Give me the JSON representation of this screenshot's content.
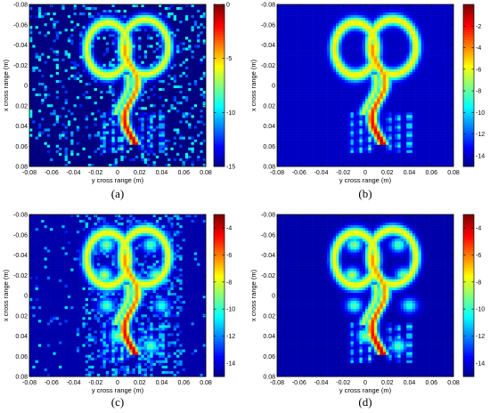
{
  "chart_data": [
    {
      "type": "heatmap",
      "caption": "(a)",
      "xlabel": "y cross range (m)",
      "ylabel": "x cross range (m)",
      "xlim": [
        -0.08,
        0.08
      ],
      "ylim": [
        -0.08,
        0.08
      ],
      "x_ticks": [
        "-0.08",
        "-0.06",
        "-0.04",
        "-0.02",
        "0",
        "0.02",
        "0.04",
        "0.06",
        "0.08"
      ],
      "y_ticks": [
        "-0.08",
        "-0.06",
        "-0.04",
        "-0.02",
        "0",
        "0.02",
        "0.04",
        "0.06",
        "0.08"
      ],
      "y_axis_reversed": true,
      "colorbar": {
        "min": -15,
        "max": 0,
        "ticks": [
          "0",
          "-5",
          "-10",
          "-15"
        ],
        "tick_values": [
          0,
          -5,
          -10,
          -15
        ]
      },
      "background_db": -15,
      "noise": "strong"
    },
    {
      "type": "heatmap",
      "caption": "(b)",
      "xlabel": "y cross range (m)",
      "ylabel": "x cross range (m)",
      "xlim": [
        -0.08,
        0.08
      ],
      "ylim": [
        -0.08,
        0.08
      ],
      "x_ticks": [
        "-0.08",
        "-0.06",
        "-0.04",
        "-0.02",
        "0",
        "0.02",
        "0.04",
        "0.06",
        "0.08"
      ],
      "y_ticks": [
        "-0.08",
        "-0.06",
        "-0.04",
        "-0.02",
        "0",
        "0.02",
        "0.04",
        "0.06",
        "0.08"
      ],
      "y_axis_reversed": true,
      "colorbar": {
        "min": -15,
        "max": 0,
        "ticks": [
          "-2",
          "-4",
          "-6",
          "-8",
          "-10",
          "-12",
          "-14"
        ],
        "tick_values": [
          -2,
          -4,
          -6,
          -8,
          -10,
          -12,
          -14
        ]
      },
      "background_db": -14,
      "noise": "none"
    },
    {
      "type": "heatmap",
      "caption": "(c)",
      "xlabel": "y cross range (m)",
      "ylabel": "x cross range (m)",
      "xlim": [
        -0.08,
        0.08
      ],
      "ylim": [
        -0.08,
        0.08
      ],
      "x_ticks": [
        "-0.08",
        "-0.06",
        "-0.04",
        "-0.02",
        "0",
        "0.02",
        "0.04",
        "0.06",
        "0.08"
      ],
      "y_ticks": [
        "-0.08",
        "-0.06",
        "-0.04",
        "-0.02",
        "0",
        "0.02",
        "0.04",
        "0.06",
        "0.08"
      ],
      "y_axis_reversed": true,
      "colorbar": {
        "min": -15,
        "max": -3,
        "ticks": [
          "-4",
          "-6",
          "-8",
          "-10",
          "-12",
          "-14"
        ],
        "tick_values": [
          -4,
          -6,
          -8,
          -10,
          -12,
          -14
        ]
      },
      "background_db": -14.5,
      "noise": "moderate"
    },
    {
      "type": "heatmap",
      "caption": "(d)",
      "xlabel": "y cross range (m)",
      "ylabel": "x cross range (m)",
      "xlim": [
        -0.08,
        0.08
      ],
      "ylim": [
        -0.08,
        0.08
      ],
      "x_ticks": [
        "-0.08",
        "-0.06",
        "-0.04",
        "-0.02",
        "0",
        "0.02",
        "0.04",
        "0.06",
        "0.08"
      ],
      "y_ticks": [
        "-0.08",
        "-0.06",
        "-0.04",
        "-0.02",
        "0",
        "0.02",
        "0.04",
        "0.06",
        "0.08"
      ],
      "y_axis_reversed": true,
      "colorbar": {
        "min": -15,
        "max": -3,
        "ticks": [
          "-4",
          "-6",
          "-8",
          "-10",
          "-12",
          "-14"
        ],
        "tick_values": [
          -4,
          -6,
          -8,
          -10,
          -12,
          -14
        ]
      },
      "background_db": -14.5,
      "noise": "none"
    }
  ]
}
